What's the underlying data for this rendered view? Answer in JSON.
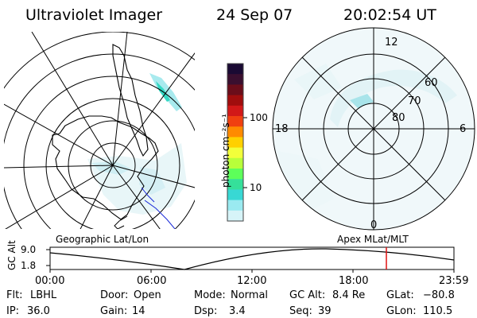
{
  "header": {
    "title": "Ultraviolet Imager",
    "date": "24 Sep 07",
    "time": "20:02:54 UT"
  },
  "colorbar": {
    "unit_label": "photon cm⁻²s⁻¹",
    "ticks": [
      "100",
      "10"
    ],
    "colors": [
      "#1a0a33",
      "#3a0f2f",
      "#6b0d1a",
      "#a00d0d",
      "#d21818",
      "#f04010",
      "#ff8a00",
      "#ffd000",
      "#f2ff3a",
      "#b8ff3a",
      "#5dff5a",
      "#35e09a",
      "#38d8d4",
      "#9aeaf0",
      "#d6f4f8"
    ]
  },
  "geo_map": {
    "label": "Geographic Lat/Lon"
  },
  "apex_map": {
    "label": "Apex MLat/MLT",
    "mlt_labels": [
      "12",
      "18",
      "6",
      "0"
    ],
    "mlat_labels": [
      "60",
      "70",
      "80"
    ]
  },
  "timeline": {
    "y_axis_label": "GC Alt",
    "y_ticks": [
      "9.0",
      "1.8"
    ],
    "x_ticks": [
      "00:00",
      "06:00",
      "12:00",
      "18:00",
      "23:59"
    ],
    "marker_color": "#e01010"
  },
  "info": {
    "row1": [
      {
        "label": "Flt:",
        "value": "LBHL"
      },
      {
        "label": "Door:",
        "value": "Open"
      },
      {
        "label": "Mode:",
        "value": "Normal"
      },
      {
        "label": "GC Alt:",
        "value": "8.4 Re"
      },
      {
        "label": "GLat:",
        "value": "−80.8"
      }
    ],
    "row2": [
      {
        "label": "IP:",
        "value": "36.0"
      },
      {
        "label": "Gain:",
        "value": "14"
      },
      {
        "label": "Dsp:",
        "value": "3.4"
      },
      {
        "label": "Seq:",
        "value": "39"
      },
      {
        "label": "GLon:",
        "value": "110.5"
      }
    ]
  }
}
